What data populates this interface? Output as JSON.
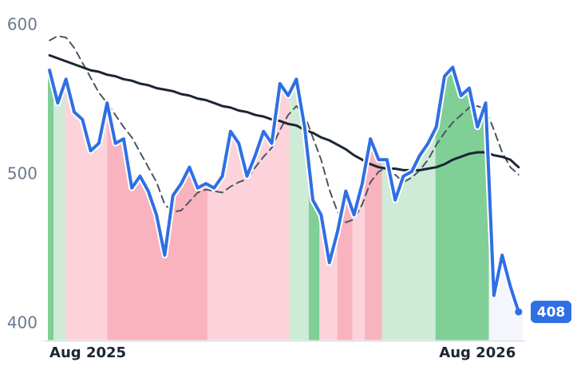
{
  "chart_data": {
    "type": "line",
    "x": [
      0,
      1,
      2,
      3,
      4,
      5,
      6,
      7,
      8,
      9,
      10,
      11,
      12,
      13,
      14,
      15,
      16,
      17,
      18,
      19,
      20,
      21,
      22,
      23,
      24,
      25,
      26,
      27,
      28,
      29,
      30,
      31,
      32,
      33,
      34,
      35,
      36,
      37,
      38,
      39,
      40,
      41,
      42,
      43,
      44,
      45,
      46,
      47,
      48,
      49,
      50,
      51,
      52,
      53,
      54,
      55,
      56,
      57
    ],
    "xlim": [
      -0.2,
      57.5
    ],
    "xticks": [
      {
        "value": 0,
        "label": "Aug 2025"
      },
      {
        "value": 52,
        "label": "Aug 2026"
      }
    ],
    "ylim": [
      389,
      617
    ],
    "yticks": [
      400,
      500,
      600
    ],
    "series": [
      {
        "color": "#2f6fe4",
        "width": 4,
        "dash": false,
        "values": [
          570,
          548,
          564,
          542,
          537,
          516,
          521,
          548,
          521,
          524,
          491,
          499,
          489,
          473,
          446,
          486,
          494,
          505,
          491,
          494,
          491,
          499,
          529,
          521,
          499,
          513,
          529,
          521,
          561,
          553,
          564,
          532,
          483,
          473,
          441,
          462,
          489,
          473,
          494,
          524,
          510,
          510,
          483,
          499,
          502,
          513,
          521,
          532,
          566,
          572,
          553,
          558,
          532,
          548,
          419,
          446,
          425,
          408
        ]
      },
      {
        "color": "#1c2533",
        "width": 3,
        "dash": false,
        "values": [
          580,
          578,
          576,
          574,
          572,
          570,
          569,
          567,
          566,
          564,
          563,
          561,
          560,
          558,
          557,
          556,
          554,
          553,
          551,
          550,
          548,
          546,
          545,
          543,
          542,
          540,
          539,
          537,
          536,
          534,
          533,
          530,
          528,
          525,
          523,
          520,
          517,
          513,
          510,
          507,
          505,
          504,
          504,
          503,
          503,
          503,
          504,
          505,
          507,
          510,
          512,
          514,
          515,
          515,
          513,
          512,
          510,
          505
        ]
      },
      {
        "color": "#4a5565",
        "width": 2,
        "dash": true,
        "values": [
          590,
          593,
          592,
          585,
          575,
          565,
          555,
          548,
          540,
          532,
          525,
          515,
          505,
          495,
          480,
          475,
          476,
          482,
          488,
          490,
          489,
          488,
          492,
          495,
          497,
          505,
          512,
          518,
          530,
          540,
          546,
          540,
          525,
          510,
          490,
          475,
          468,
          470,
          480,
          495,
          502,
          505,
          500,
          495,
          498,
          503,
          510,
          520,
          528,
          535,
          540,
          545,
          546,
          544,
          530,
          515,
          505,
          500
        ]
      }
    ],
    "regions": [
      {
        "from": -0.2,
        "to": 0.5,
        "color": "#7fcf96"
      },
      {
        "from": 0.5,
        "to": 1.9,
        "color": "#cdebd6"
      },
      {
        "from": 1.9,
        "to": 7.0,
        "color": "#fdd3db"
      },
      {
        "from": 7.0,
        "to": 19.2,
        "color": "#f9b3bf"
      },
      {
        "from": 19.2,
        "to": 29.2,
        "color": "#fdd3db"
      },
      {
        "from": 29.2,
        "to": 31.5,
        "color": "#cdebd6"
      },
      {
        "from": 31.5,
        "to": 32.8,
        "color": "#7fcf96"
      },
      {
        "from": 32.8,
        "to": 35.0,
        "color": "#fdd3db"
      },
      {
        "from": 35.0,
        "to": 36.8,
        "color": "#f9b3bf"
      },
      {
        "from": 36.8,
        "to": 38.3,
        "color": "#fdd3db"
      },
      {
        "from": 38.3,
        "to": 40.4,
        "color": "#f9b3bf"
      },
      {
        "from": 40.4,
        "to": 46.9,
        "color": "#cdebd6"
      },
      {
        "from": 46.9,
        "to": 53.4,
        "color": "#7fcf96"
      },
      {
        "from": 53.4,
        "to": 57.5,
        "color": "#f4f6fb"
      }
    ]
  }
}
